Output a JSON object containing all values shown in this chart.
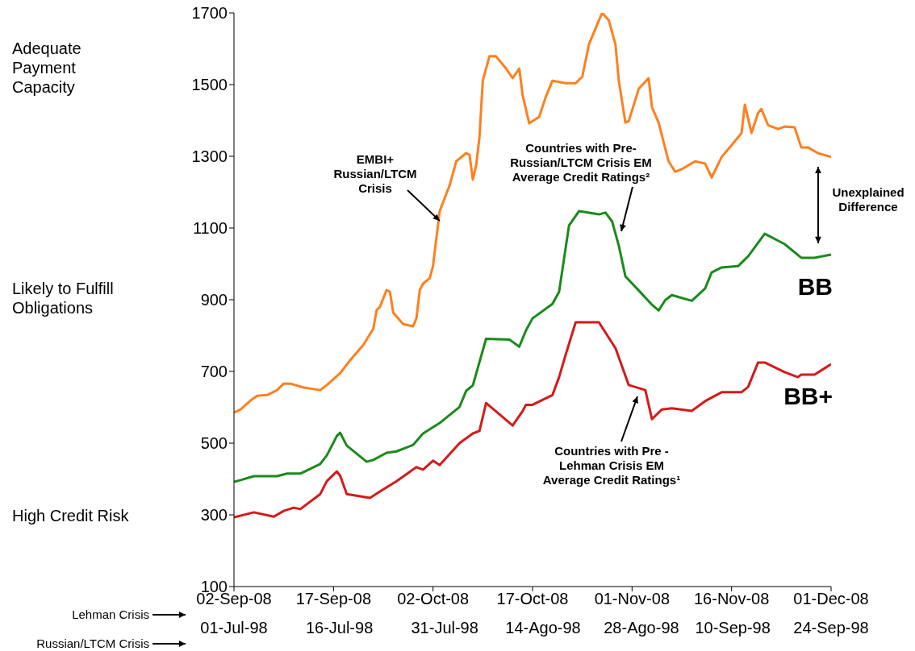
{
  "chart_data": {
    "type": "line",
    "xlabel": "Lehman Crisis",
    "x2label": "Russian/LTCM Crisis",
    "xlim": [
      "2008-09-02",
      "2008-12-01"
    ],
    "xticks": [
      {
        "value": "2008-09-02",
        "label": "02-Sep-08"
      },
      {
        "value": "2008-09-17",
        "label": "17-Sep-08"
      },
      {
        "value": "2008-10-02",
        "label": "02-Oct-08"
      },
      {
        "value": "2008-10-17",
        "label": "17-Oct-08"
      },
      {
        "value": "2008-11-01",
        "label": "01-Nov-08"
      },
      {
        "value": "2008-11-16",
        "label": "16-Nov-08"
      },
      {
        "value": "2008-12-01",
        "label": "01-Dec-08"
      }
    ],
    "x2lim": [
      "1998-07-01",
      "1998-09-24"
    ],
    "x2ticks": [
      {
        "value": "1998-07-01",
        "label": "01-Jul-98"
      },
      {
        "value": "1998-07-16",
        "label": "16-Jul-98"
      },
      {
        "value": "1998-07-31",
        "label": "31-Jul-98"
      },
      {
        "value": "1998-08-14",
        "label": "14-Ago-98"
      },
      {
        "value": "1998-08-28",
        "label": "28-Ago-98"
      },
      {
        "value": "1998-09-10",
        "label": "10-Sep-98"
      },
      {
        "value": "1998-09-24",
        "label": "24-Sep-98"
      }
    ],
    "ylim": [
      100,
      1700
    ],
    "yticks": [
      100,
      300,
      500,
      700,
      900,
      1100,
      1300,
      1500,
      1700
    ],
    "series": [
      {
        "color": "#ff7f1e",
        "x": [
          "2008-09-02",
          "2008-09-03",
          "2008-09-04T12:00",
          "2008-09-05T12:00",
          "2008-09-07",
          "2008-09-08T12:00",
          "2008-09-09T12:00",
          "2008-09-10T12:00",
          "2008-09-12T12:00",
          "2008-09-15",
          "2008-09-16",
          "2008-09-18",
          "2008-09-19T12:00",
          "2008-09-21T12:00",
          "2008-09-23",
          "2008-09-23T12:00",
          "2008-09-24",
          "2008-09-25",
          "2008-09-25T12:00",
          "2008-09-26",
          "2008-09-27T12:00",
          "2008-09-29",
          "2008-09-29T12:00",
          "2008-09-30",
          "2008-09-30T12:00",
          "2008-10-01T12:00",
          "2008-10-02",
          "2008-10-03",
          "2008-10-04T12:00",
          "2008-10-05T12:00",
          "2008-10-07",
          "2008-10-07T12:00",
          "2008-10-08",
          "2008-10-08T12:00",
          "2008-10-09",
          "2008-10-09T12:00",
          "2008-10-10T12:00",
          "2008-10-11T12:00",
          "2008-10-13",
          "2008-10-14",
          "2008-10-15",
          "2008-10-15T12:00",
          "2008-10-16T12:00",
          "2008-10-18",
          "2008-10-19",
          "2008-10-20",
          "2008-10-22",
          "2008-10-23T12:00",
          "2008-10-24T12:00",
          "2008-10-25T12:00",
          "2008-10-27",
          "2008-10-27T12:00",
          "2008-10-28T12:00",
          "2008-10-29T12:00",
          "2008-10-30",
          "2008-10-31",
          "2008-10-31T12:00",
          "2008-11-02",
          "2008-11-03T12:00",
          "2008-11-04",
          "2008-11-05",
          "2008-11-06T12:00",
          "2008-11-07T12:00",
          "2008-11-08T12:00",
          "2008-11-10T12:00",
          "2008-11-12",
          "2008-11-13",
          "2008-11-14T12:00",
          "2008-11-16",
          "2008-11-17T12:00",
          "2008-11-18",
          "2008-11-19",
          "2008-11-20",
          "2008-11-20T12:00",
          "2008-11-21T12:00",
          "2008-11-23",
          "2008-11-24",
          "2008-11-25T12:00",
          "2008-11-26T12:00",
          "2008-11-27T12:00",
          "2008-11-29",
          "2008-12-01"
        ],
        "values": [
          585,
          594,
          619,
          632,
          634,
          648,
          666,
          666,
          655,
          648,
          662,
          695,
          731,
          774,
          819,
          871,
          880,
          927,
          922,
          864,
          832,
          826,
          848,
          927,
          945,
          960,
          994,
          1147,
          1219,
          1286,
          1309,
          1304,
          1235,
          1275,
          1354,
          1511,
          1579,
          1579,
          1545,
          1518,
          1545,
          1471,
          1392,
          1410,
          1466,
          1511,
          1504,
          1504,
          1522,
          1612,
          1679,
          1700,
          1679,
          1612,
          1511,
          1394,
          1398,
          1488,
          1518,
          1437,
          1394,
          1286,
          1257,
          1264,
          1286,
          1280,
          1241,
          1298,
          1331,
          1365,
          1444,
          1365,
          1421,
          1432,
          1387,
          1376,
          1383,
          1381,
          1325,
          1325,
          1309,
          1298
        ]
      },
      {
        "name": "BB",
        "color": "#1a8a1a",
        "x": [
          "2008-09-02",
          "2008-09-03",
          "2008-09-05",
          "2008-09-08T12:00",
          "2008-09-10",
          "2008-09-12",
          "2008-09-15",
          "2008-09-16",
          "2008-09-17T12:00",
          "2008-09-18",
          "2008-09-19",
          "2008-09-22",
          "2008-09-23",
          "2008-09-25",
          "2008-09-26T12:00",
          "2008-09-29",
          "2008-09-30T12:00",
          "2008-10-03",
          "2008-10-06",
          "2008-10-07",
          "2008-10-08",
          "2008-10-10",
          "2008-10-13T12:00",
          "2008-10-15",
          "2008-10-16",
          "2008-10-17",
          "2008-10-20",
          "2008-10-21",
          "2008-10-22T12:00",
          "2008-10-24",
          "2008-10-27",
          "2008-10-28",
          "2008-10-29",
          "2008-10-30",
          "2008-10-31",
          "2008-11-02T12:00",
          "2008-11-04",
          "2008-11-05",
          "2008-11-06",
          "2008-11-07",
          "2008-11-10",
          "2008-11-12",
          "2008-11-13",
          "2008-11-14T12:00",
          "2008-11-17",
          "2008-11-18T12:00",
          "2008-11-21",
          "2008-11-24",
          "2008-11-26T12:00",
          "2008-11-28T12:00",
          "2008-12-01"
        ],
        "values": [
          392,
          397,
          408,
          408,
          415,
          415,
          442,
          466,
          520,
          529,
          493,
          448,
          453,
          473,
          477,
          495,
          527,
          556,
          601,
          646,
          661,
          791,
          789,
          769,
          814,
          848,
          888,
          922,
          1107,
          1147,
          1138,
          1143,
          1118,
          1051,
          965,
          916,
          886,
          870,
          899,
          913,
          897,
          931,
          976,
          990,
          994,
          1021,
          1084,
          1055,
          1017,
          1017,
          1026
        ]
      },
      {
        "name": "BB+",
        "color": "#d41a1a",
        "x": [
          "2008-09-02",
          "2008-09-05",
          "2008-09-08",
          "2008-09-09T12:00",
          "2008-09-11",
          "2008-09-12",
          "2008-09-15",
          "2008-09-16",
          "2008-09-17T12:00",
          "2008-09-18",
          "2008-09-19",
          "2008-09-22T12:00",
          "2008-09-24",
          "2008-09-26T12:00",
          "2008-09-29T12:00",
          "2008-09-30T12:00",
          "2008-10-02",
          "2008-10-03",
          "2008-10-06",
          "2008-10-08",
          "2008-10-09",
          "2008-10-10",
          "2008-10-14",
          "2008-10-15T12:00",
          "2008-10-16",
          "2008-10-17",
          "2008-10-20",
          "2008-10-21",
          "2008-10-22",
          "2008-10-23T12:00",
          "2008-10-27",
          "2008-10-29T12:00",
          "2008-10-31T12:00",
          "2008-11-03",
          "2008-11-04",
          "2008-11-05T12:00",
          "2008-11-07",
          "2008-11-10",
          "2008-11-12",
          "2008-11-14T12:00",
          "2008-11-17T12:00",
          "2008-11-18T12:00",
          "2008-11-20",
          "2008-11-21",
          "2008-11-24",
          "2008-11-26",
          "2008-11-26T12:00",
          "2008-11-28T12:00",
          "2008-12-01"
        ],
        "values": [
          293,
          307,
          295,
          311,
          320,
          316,
          358,
          394,
          421,
          409,
          358,
          347,
          365,
          394,
          433,
          426,
          451,
          439,
          500,
          527,
          534,
          612,
          549,
          589,
          607,
          607,
          634,
          684,
          747,
          837,
          837,
          765,
          662,
          648,
          567,
          594,
          597,
          590,
          617,
          642,
          642,
          657,
          725,
          725,
          698,
          684,
          691,
          691,
          720
        ]
      }
    ],
    "annotations": [
      "Adequate Payment Capacity",
      "Likely to Fulfill Obligations",
      "High Credit Risk",
      {
        "text": "EMBI+ Russian/LTCM Crisis",
        "x": "2008-10-03",
        "y": 1120
      },
      "Countries with Pre-Russian/LTCM Crisis EM Average Credit Ratings²",
      "Countries with Pre - Lehman Crisis EM Average Credit Ratings¹",
      "Unexplained Difference"
    ]
  }
}
